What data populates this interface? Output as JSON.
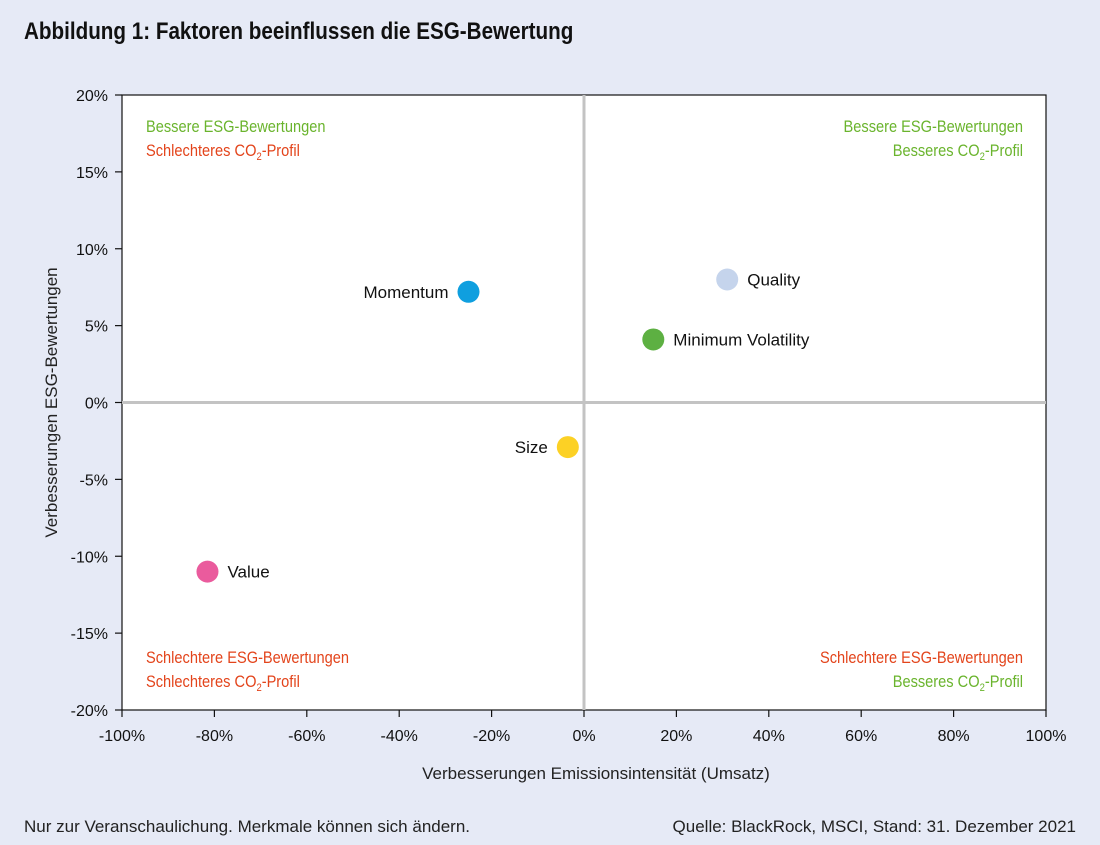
{
  "title": "Abbildung 1: Faktoren beeinflussen die ESG-Bewertung",
  "footer": {
    "note": "Nur zur Veranschaulichung. Merkmale können sich ändern.",
    "source": "Quelle: BlackRock, MSCI, Stand: 31. Dezember 2021"
  },
  "colors": {
    "background": "#e6eaf6",
    "plot_background": "#ffffff",
    "positive": "#6ab42d",
    "negative": "#e3441b",
    "axis_lines": "#c3c3c3"
  },
  "chart_data": {
    "type": "scatter",
    "xlabel": "Verbesserungen Emissionsintensität (Umsatz)",
    "ylabel": "Verbesserungen ESG-Bewertungen",
    "xlim": [
      -100,
      100
    ],
    "ylim": [
      -20,
      20
    ],
    "x_unit": "%",
    "y_unit": "%",
    "x_ticks": [
      -100,
      -80,
      -60,
      -40,
      -20,
      0,
      20,
      40,
      60,
      80,
      100
    ],
    "y_ticks": [
      -20,
      -15,
      -10,
      -5,
      0,
      5,
      10,
      15,
      20
    ],
    "x_tick_labels": [
      "-100%",
      "-80%",
      "-60%",
      "-40%",
      "-20%",
      "0%",
      "20%",
      "40%",
      "60%",
      "80%",
      "100%"
    ],
    "y_tick_labels": [
      "-20%",
      "-15%",
      "-10%",
      "-5%",
      "0%",
      "5%",
      "10%",
      "15%",
      "20%"
    ],
    "grid": false,
    "points": [
      {
        "label": "Momentum",
        "x": -25,
        "y": 7.2,
        "color": "#0f9fdf",
        "label_side": "left"
      },
      {
        "label": "Quality",
        "x": 31,
        "y": 8.0,
        "color": "#c5d4ec",
        "label_side": "right"
      },
      {
        "label": "Minimum Volatility",
        "x": 15,
        "y": 4.1,
        "color": "#5db042",
        "label_side": "right"
      },
      {
        "label": "Size",
        "x": -3.5,
        "y": -2.9,
        "color": "#fcd125",
        "label_side": "left"
      },
      {
        "label": "Value",
        "x": -81.5,
        "y": -11.0,
        "color": "#ea5b9d",
        "label_side": "right"
      }
    ],
    "quadrant_labels": [
      {
        "position": "top-left",
        "lines": [
          {
            "text": "Bessere ESG-Bewertungen",
            "tone": "positive"
          },
          {
            "text": "Schlechteres CO",
            "sub": "2",
            "tail": "-Profil",
            "tone": "negative"
          }
        ]
      },
      {
        "position": "top-right",
        "lines": [
          {
            "text": "Bessere ESG-Bewertungen",
            "tone": "positive"
          },
          {
            "text": "Besseres CO",
            "sub": "2",
            "tail": "-Profil",
            "tone": "positive"
          }
        ]
      },
      {
        "position": "bottom-left",
        "lines": [
          {
            "text": "Schlechtere ESG-Bewertungen",
            "tone": "negative"
          },
          {
            "text": "Schlechteres CO",
            "sub": "2",
            "tail": "-Profil",
            "tone": "negative"
          }
        ]
      },
      {
        "position": "bottom-right",
        "lines": [
          {
            "text": "Schlechtere ESG-Bewertungen",
            "tone": "negative"
          },
          {
            "text": "Besseres CO",
            "sub": "2",
            "tail": "-Profil",
            "tone": "positive"
          }
        ]
      }
    ]
  }
}
